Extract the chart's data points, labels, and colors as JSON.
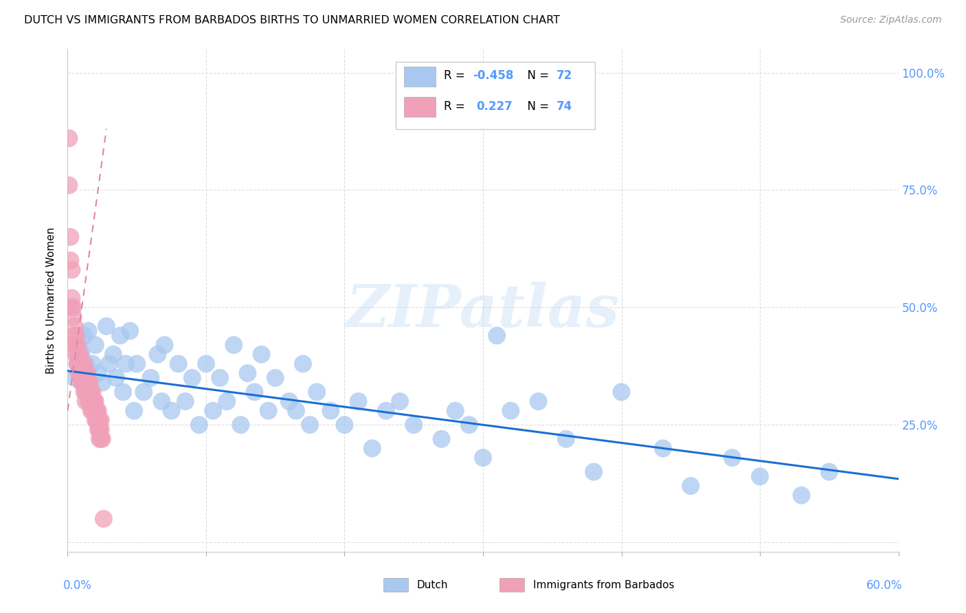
{
  "title": "DUTCH VS IMMIGRANTS FROM BARBADOS BIRTHS TO UNMARRIED WOMEN CORRELATION CHART",
  "source": "Source: ZipAtlas.com",
  "ylabel": "Births to Unmarried Women",
  "xlim": [
    0.0,
    0.6
  ],
  "ylim": [
    -0.02,
    1.05
  ],
  "legend_R_dutch": "-0.458",
  "legend_N_dutch": "72",
  "legend_R_barbados": "0.227",
  "legend_N_barbados": "74",
  "dutch_color": "#a8c8f0",
  "barbados_color": "#f0a0b8",
  "trendline_dutch_color": "#1a6fd4",
  "trendline_barbados_color": "#e08898",
  "watermark_text": "ZIPatlas",
  "dutch_x": [
    0.005,
    0.007,
    0.008,
    0.01,
    0.012,
    0.013,
    0.014,
    0.015,
    0.016,
    0.018,
    0.02,
    0.022,
    0.025,
    0.028,
    0.03,
    0.033,
    0.035,
    0.038,
    0.04,
    0.042,
    0.045,
    0.048,
    0.05,
    0.055,
    0.06,
    0.065,
    0.068,
    0.07,
    0.075,
    0.08,
    0.085,
    0.09,
    0.095,
    0.1,
    0.105,
    0.11,
    0.115,
    0.12,
    0.125,
    0.13,
    0.135,
    0.14,
    0.145,
    0.15,
    0.16,
    0.165,
    0.17,
    0.175,
    0.18,
    0.19,
    0.2,
    0.21,
    0.22,
    0.23,
    0.24,
    0.25,
    0.27,
    0.28,
    0.29,
    0.3,
    0.31,
    0.32,
    0.34,
    0.36,
    0.38,
    0.4,
    0.43,
    0.45,
    0.48,
    0.5,
    0.53,
    0.55
  ],
  "dutch_y": [
    0.35,
    0.38,
    0.42,
    0.4,
    0.44,
    0.38,
    0.36,
    0.45,
    0.32,
    0.38,
    0.42,
    0.36,
    0.34,
    0.46,
    0.38,
    0.4,
    0.35,
    0.44,
    0.32,
    0.38,
    0.45,
    0.28,
    0.38,
    0.32,
    0.35,
    0.4,
    0.3,
    0.42,
    0.28,
    0.38,
    0.3,
    0.35,
    0.25,
    0.38,
    0.28,
    0.35,
    0.3,
    0.42,
    0.25,
    0.36,
    0.32,
    0.4,
    0.28,
    0.35,
    0.3,
    0.28,
    0.38,
    0.25,
    0.32,
    0.28,
    0.25,
    0.3,
    0.2,
    0.28,
    0.3,
    0.25,
    0.22,
    0.28,
    0.25,
    0.18,
    0.44,
    0.28,
    0.3,
    0.22,
    0.15,
    0.32,
    0.2,
    0.12,
    0.18,
    0.14,
    0.1,
    0.15
  ],
  "barbados_x": [
    0.001,
    0.001,
    0.002,
    0.002,
    0.003,
    0.003,
    0.003,
    0.004,
    0.004,
    0.005,
    0.005,
    0.005,
    0.006,
    0.006,
    0.006,
    0.007,
    0.007,
    0.007,
    0.008,
    0.008,
    0.008,
    0.009,
    0.009,
    0.009,
    0.01,
    0.01,
    0.01,
    0.011,
    0.011,
    0.011,
    0.012,
    0.012,
    0.012,
    0.012,
    0.013,
    0.013,
    0.013,
    0.013,
    0.014,
    0.014,
    0.014,
    0.015,
    0.015,
    0.015,
    0.016,
    0.016,
    0.016,
    0.017,
    0.017,
    0.017,
    0.018,
    0.018,
    0.018,
    0.019,
    0.019,
    0.019,
    0.02,
    0.02,
    0.02,
    0.021,
    0.021,
    0.021,
    0.022,
    0.022,
    0.022,
    0.022,
    0.023,
    0.023,
    0.023,
    0.024,
    0.024,
    0.024,
    0.025,
    0.026
  ],
  "barbados_y": [
    0.86,
    0.76,
    0.65,
    0.6,
    0.58,
    0.52,
    0.5,
    0.5,
    0.48,
    0.46,
    0.44,
    0.42,
    0.44,
    0.42,
    0.4,
    0.4,
    0.38,
    0.42,
    0.38,
    0.36,
    0.4,
    0.38,
    0.36,
    0.4,
    0.36,
    0.34,
    0.38,
    0.36,
    0.34,
    0.36,
    0.34,
    0.32,
    0.36,
    0.38,
    0.32,
    0.3,
    0.34,
    0.36,
    0.34,
    0.32,
    0.36,
    0.32,
    0.3,
    0.34,
    0.32,
    0.3,
    0.34,
    0.3,
    0.28,
    0.32,
    0.3,
    0.28,
    0.32,
    0.3,
    0.28,
    0.3,
    0.28,
    0.26,
    0.3,
    0.28,
    0.26,
    0.28,
    0.26,
    0.24,
    0.28,
    0.26,
    0.24,
    0.22,
    0.26,
    0.24,
    0.22,
    0.26,
    0.22,
    0.05
  ],
  "dutch_trend_x": [
    0.0,
    0.6
  ],
  "dutch_trend_y": [
    0.365,
    0.135
  ],
  "barbados_trend_x": [
    0.0,
    0.028
  ],
  "barbados_trend_y": [
    0.28,
    0.88
  ],
  "yticks": [
    0.0,
    0.25,
    0.5,
    0.75,
    1.0
  ],
  "ytick_labels": [
    "",
    "25.0%",
    "50.0%",
    "75.0%",
    "100.0%"
  ],
  "xtick_labels_show": [
    "0.0%",
    "60.0%"
  ],
  "grid_color": "#dddddd",
  "right_axis_color": "#5599ff"
}
